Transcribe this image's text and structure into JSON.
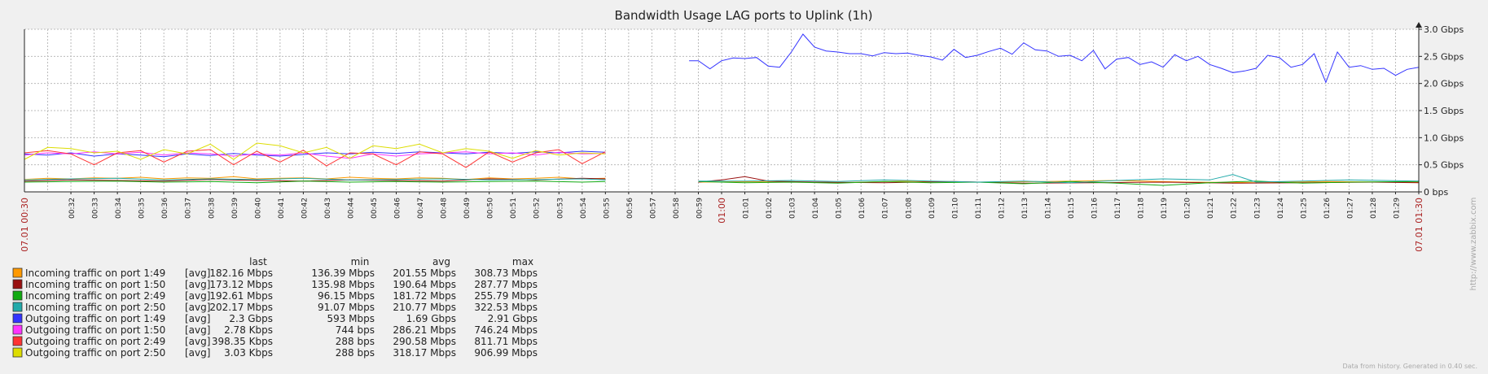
{
  "chart_data": {
    "type": "line",
    "title": "Bandwidth Usage LAG ports to Uplink (1h)",
    "y_ticks": [
      "0 bps",
      "0.5 Gbps",
      "1.0 Gbps",
      "1.5 Gbps",
      "2.0 Gbps",
      "2.5 Gbps",
      "3.0 Gbps"
    ],
    "ylim": [
      0,
      3.0
    ],
    "y_unit": "Gbps",
    "x_start_label": "07.01 00:30",
    "x_end_label": "07.01 01:30",
    "x_ticks": [
      "00:32",
      "00:33",
      "00:34",
      "00:35",
      "00:36",
      "00:37",
      "00:38",
      "00:39",
      "00:40",
      "00:41",
      "00:42",
      "00:43",
      "00:44",
      "00:45",
      "00:46",
      "00:47",
      "00:48",
      "00:49",
      "00:50",
      "00:51",
      "00:52",
      "00:53",
      "00:54",
      "00:55",
      "00:56",
      "00:57",
      "00:58",
      "00:59",
      "01:00",
      "01:01",
      "01:02",
      "01:03",
      "01:04",
      "01:05",
      "01:06",
      "01:07",
      "01:08",
      "01:09",
      "01:10",
      "01:11",
      "01:12",
      "01:13",
      "01:14",
      "01:15",
      "01:16",
      "01:17",
      "01:18",
      "01:19",
      "01:20",
      "01:21",
      "01:22",
      "01:23",
      "01:24",
      "01:25",
      "01:26",
      "01:27",
      "01:28",
      "01:29",
      "01:30"
    ],
    "x_tick_minutes": [
      2,
      3,
      4,
      5,
      6,
      7,
      8,
      9,
      10,
      11,
      12,
      13,
      14,
      15,
      16,
      17,
      18,
      19,
      20,
      21,
      22,
      23,
      24,
      25,
      26,
      27,
      28,
      29,
      30,
      31,
      32,
      33,
      34,
      35,
      36,
      37,
      38,
      39,
      40,
      41,
      42,
      43,
      44,
      45,
      46,
      47,
      48,
      49,
      50,
      51,
      52,
      53,
      54,
      55,
      56,
      57,
      58,
      59,
      60
    ],
    "highlight_ticks": [
      "01:00"
    ],
    "grid": true,
    "legend_headers": [
      "last",
      "min",
      "avg",
      "max"
    ],
    "series": [
      {
        "name": "Incoming traffic on port 1:49",
        "color": "#ff9900",
        "func": "[avg]",
        "last": "182.16 Mbps",
        "min": "136.39 Mbps",
        "avg": "201.55 Mbps",
        "max": "308.73 Mbps",
        "segments": [
          {
            "x": [
              0,
              1,
              2,
              3,
              4,
              5,
              6,
              7,
              8,
              9,
              10,
              11,
              12,
              13,
              14,
              15,
              16,
              17,
              18,
              19,
              20,
              21,
              22,
              23,
              24,
              25
            ],
            "y": [
              0.23,
              0.25,
              0.24,
              0.26,
              0.25,
              0.27,
              0.24,
              0.26,
              0.25,
              0.28,
              0.24,
              0.25,
              0.26,
              0.24,
              0.27,
              0.25,
              0.24,
              0.26,
              0.25,
              0.23,
              0.26,
              0.24,
              0.25,
              0.27,
              0.24,
              0.25
            ]
          },
          {
            "x": [
              29,
              32,
              35,
              38,
              41,
              44,
              47,
              50,
              53,
              56,
              59,
              60
            ],
            "y": [
              0.18,
              0.19,
              0.17,
              0.2,
              0.18,
              0.19,
              0.21,
              0.18,
              0.17,
              0.19,
              0.18,
              0.18
            ]
          }
        ]
      },
      {
        "name": "Incoming traffic on port 1:50",
        "color": "#991111",
        "func": "[avg]",
        "last": "173.12 Mbps",
        "min": "135.98 Mbps",
        "avg": "190.64 Mbps",
        "max": "287.77 Mbps",
        "segments": [
          {
            "x": [
              0,
              2,
              4,
              6,
              8,
              10,
              12,
              14,
              16,
              18,
              20,
              22,
              24,
              25
            ],
            "y": [
              0.2,
              0.22,
              0.21,
              0.2,
              0.23,
              0.21,
              0.2,
              0.22,
              0.21,
              0.2,
              0.24,
              0.22,
              0.25,
              0.24
            ]
          },
          {
            "x": [
              29,
              30,
              31,
              32,
              34,
              37,
              40,
              43,
              46,
              49,
              52,
              55,
              58,
              60
            ],
            "y": [
              0.18,
              0.22,
              0.28,
              0.2,
              0.18,
              0.17,
              0.19,
              0.16,
              0.17,
              0.18,
              0.16,
              0.17,
              0.18,
              0.17
            ]
          }
        ]
      },
      {
        "name": "Incoming traffic on port 2:49",
        "color": "#11aa11",
        "func": "[avg]",
        "last": "192.61 Mbps",
        "min": "96.15 Mbps",
        "avg": "181.72 Mbps",
        "max": "255.79 Mbps",
        "segments": [
          {
            "x": [
              0,
              2,
              4,
              6,
              8,
              10,
              12,
              14,
              16,
              18,
              20,
              22,
              24,
              25
            ],
            "y": [
              0.18,
              0.19,
              0.2,
              0.18,
              0.19,
              0.17,
              0.2,
              0.18,
              0.19,
              0.18,
              0.19,
              0.2,
              0.18,
              0.19
            ]
          },
          {
            "x": [
              29,
              31,
              33,
              35,
              37,
              39,
              41,
              43,
              45,
              47,
              49,
              51,
              53,
              55,
              57,
              60
            ],
            "y": [
              0.19,
              0.17,
              0.18,
              0.16,
              0.19,
              0.17,
              0.18,
              0.15,
              0.19,
              0.16,
              0.12,
              0.17,
              0.2,
              0.16,
              0.18,
              0.19
            ]
          }
        ]
      },
      {
        "name": "Incoming traffic on port 2:50",
        "color": "#22aaaa",
        "func": "[avg]",
        "last": "202.17 Mbps",
        "min": "91.07 Mbps",
        "avg": "210.77 Mbps",
        "max": "322.53 Mbps",
        "segments": [
          {
            "x": [
              0,
              2,
              4,
              6,
              8,
              10,
              12,
              14,
              16,
              18,
              20,
              22,
              24,
              25
            ],
            "y": [
              0.22,
              0.24,
              0.25,
              0.22,
              0.24,
              0.23,
              0.25,
              0.22,
              0.23,
              0.24,
              0.22,
              0.23,
              0.24,
              0.22
            ]
          },
          {
            "x": [
              29,
              31,
              33,
              35,
              37,
              39,
              41,
              43,
              45,
              47,
              49,
              51,
              52,
              53,
              55,
              57,
              60
            ],
            "y": [
              0.2,
              0.2,
              0.21,
              0.19,
              0.22,
              0.2,
              0.18,
              0.2,
              0.17,
              0.21,
              0.24,
              0.22,
              0.32,
              0.18,
              0.2,
              0.22,
              0.2
            ]
          }
        ]
      },
      {
        "name": "Outgoing traffic on port 1:49",
        "color": "#3333ff",
        "func": "[avg]",
        "last": "2.3 Gbps",
        "min": "593 Mbps",
        "avg": "1.69 Gbps",
        "max": "2.91 Gbps",
        "segments": [
          {
            "x": [
              0,
              1,
              2,
              3,
              4,
              5,
              6,
              7,
              8,
              9,
              10,
              11,
              12,
              13,
              14,
              15,
              16,
              17,
              18,
              19,
              20,
              21,
              22,
              23,
              24,
              25
            ],
            "y": [
              0.7,
              0.68,
              0.72,
              0.66,
              0.7,
              0.68,
              0.65,
              0.7,
              0.67,
              0.71,
              0.68,
              0.66,
              0.69,
              0.72,
              0.7,
              0.73,
              0.71,
              0.74,
              0.72,
              0.7,
              0.73,
              0.71,
              0.74,
              0.72,
              0.75,
              0.73
            ]
          },
          {
            "x": [
              28.6,
              29,
              29.5,
              30,
              30.5,
              31,
              31.5,
              32,
              32.5,
              33,
              33.5,
              34,
              34.5,
              35,
              35.5,
              36,
              36.5,
              37,
              37.5,
              38,
              38.5,
              39,
              39.5,
              40,
              40.5,
              41,
              41.5,
              42,
              42.5,
              43,
              43.5,
              44,
              44.5,
              45,
              45.5,
              46,
              46.5,
              47,
              47.5,
              48,
              48.5,
              49,
              49.5,
              50,
              50.5,
              51,
              51.5,
              52,
              52.5,
              53,
              53.5,
              54,
              54.5,
              55,
              55.5,
              56,
              56.5,
              57,
              57.5,
              58,
              58.5,
              59,
              59.5,
              60
            ],
            "y": [
              2.42,
              2.42,
              2.27,
              2.42,
              2.47,
              2.46,
              2.48,
              2.32,
              2.3,
              2.58,
              2.91,
              2.67,
              2.6,
              2.58,
              2.55,
              2.55,
              2.51,
              2.57,
              2.55,
              2.56,
              2.52,
              2.49,
              2.43,
              2.63,
              2.48,
              2.52,
              2.59,
              2.65,
              2.54,
              2.75,
              2.62,
              2.6,
              2.5,
              2.52,
              2.42,
              2.61,
              2.27,
              2.45,
              2.48,
              2.35,
              2.4,
              2.3,
              2.53,
              2.42,
              2.5,
              2.35,
              2.28,
              2.2,
              2.23,
              2.28,
              2.52,
              2.48,
              2.3,
              2.35,
              2.55,
              2.02,
              2.58,
              2.3,
              2.33,
              2.26,
              2.28,
              2.15,
              2.26,
              2.3
            ]
          }
        ]
      },
      {
        "name": "Outgoing traffic on port 1:50",
        "color": "#ff33ff",
        "func": "[avg]",
        "last": "2.78 Kbps",
        "min": "744 bps",
        "avg": "286.21 Mbps",
        "max": "746.24 Mbps",
        "segments": [
          {
            "x": [
              0,
              1,
              2,
              3,
              4,
              5,
              6,
              7,
              8,
              9,
              10,
              11,
              12,
              13,
              14,
              15,
              16,
              17,
              18,
              19,
              20,
              21,
              22,
              23,
              24,
              25
            ],
            "y": [
              0.68,
              0.72,
              0.7,
              0.74,
              0.7,
              0.73,
              0.68,
              0.72,
              0.7,
              0.66,
              0.7,
              0.68,
              0.72,
              0.66,
              0.62,
              0.7,
              0.66,
              0.7,
              0.72,
              0.74,
              0.7,
              0.72,
              0.68,
              0.73,
              0.7,
              0.71
            ]
          }
        ]
      },
      {
        "name": "Outgoing traffic on port 2:49",
        "color": "#ff3333",
        "func": "[avg]",
        "last": "398.35 Kbps",
        "min": "288 bps",
        "avg": "290.58 Mbps",
        "max": "811.71 Mbps",
        "segments": [
          {
            "x": [
              0,
              1,
              2,
              3,
              4,
              5,
              6,
              7,
              8,
              9,
              10,
              11,
              12,
              13,
              14,
              15,
              16,
              17,
              18,
              19,
              20,
              21,
              22,
              23,
              24,
              25
            ],
            "y": [
              0.72,
              0.76,
              0.7,
              0.5,
              0.72,
              0.76,
              0.55,
              0.75,
              0.78,
              0.5,
              0.75,
              0.55,
              0.77,
              0.48,
              0.72,
              0.7,
              0.5,
              0.74,
              0.7,
              0.45,
              0.74,
              0.55,
              0.72,
              0.78,
              0.52,
              0.74
            ]
          }
        ]
      },
      {
        "name": "Outgoing traffic on port 2:50",
        "color": "#dddd00",
        "func": "[avg]",
        "last": "3.03 Kbps",
        "min": "288 bps",
        "avg": "318.17 Mbps",
        "max": "906.99 Mbps",
        "segments": [
          {
            "x": [
              0,
              1,
              2,
              3,
              4,
              5,
              6,
              7,
              8,
              9,
              10,
              11,
              12,
              13,
              14,
              15,
              16,
              17,
              18,
              19,
              20,
              21,
              22,
              23,
              24,
              25
            ],
            "y": [
              0.6,
              0.82,
              0.8,
              0.72,
              0.75,
              0.6,
              0.78,
              0.7,
              0.88,
              0.6,
              0.9,
              0.85,
              0.72,
              0.82,
              0.62,
              0.85,
              0.8,
              0.88,
              0.72,
              0.8,
              0.75,
              0.62,
              0.76,
              0.68,
              0.72,
              0.7
            ]
          }
        ]
      }
    ]
  },
  "url_watermark": "http://www.zabbix.com",
  "footer_text": "Data from history. Generated in 0.40 sec."
}
